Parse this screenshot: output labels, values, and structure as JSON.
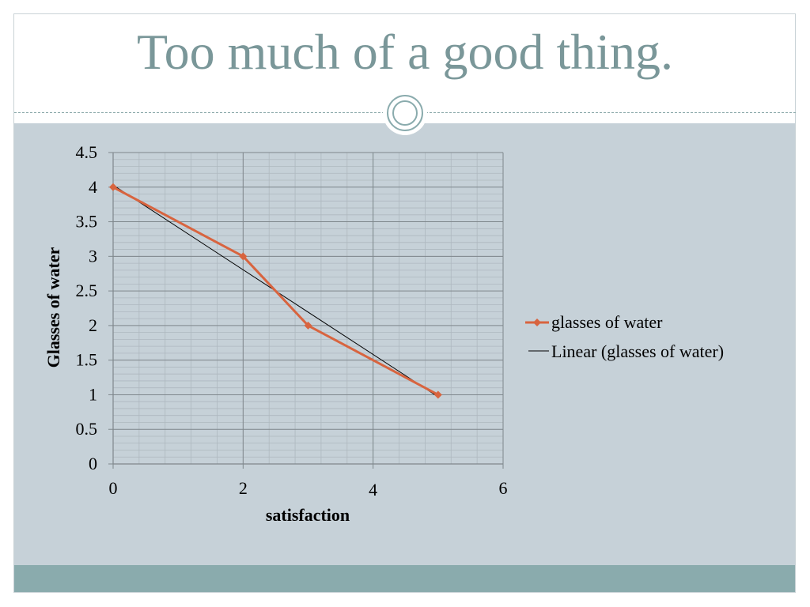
{
  "slide": {
    "title": "Too much of a good thing."
  },
  "colors": {
    "title": "#7a9799",
    "content_bg": "#c6d1d8",
    "footer": "#8aabad",
    "series": "#d8643f",
    "trendline": "#000000"
  },
  "chart_data": {
    "type": "line",
    "xlabel": "satisfaction",
    "ylabel": "Glasses of water",
    "xlim": [
      0,
      6
    ],
    "ylim": [
      0,
      4.5
    ],
    "x_ticks": [
      "0",
      "2",
      "4",
      "6"
    ],
    "x_tick_values": [
      0,
      2,
      4,
      6
    ],
    "y_ticks": [
      "0",
      "0.5",
      "1",
      "1.5",
      "2",
      "2.5",
      "3",
      "3.5",
      "4",
      "4.5"
    ],
    "y_tick_values": [
      0,
      0.5,
      1,
      1.5,
      2,
      2.5,
      3,
      3.5,
      4,
      4.5
    ],
    "grid": true,
    "legend_position": "right",
    "series": [
      {
        "name": "glasses of water",
        "marker": "diamond",
        "x": [
          0,
          2,
          3,
          5
        ],
        "y": [
          4,
          3,
          2,
          1
        ]
      }
    ],
    "trendline": {
      "name": "Linear (glasses of water)",
      "type": "linear",
      "x": [
        0,
        5
      ],
      "y": [
        4.03,
        0.97
      ]
    }
  }
}
